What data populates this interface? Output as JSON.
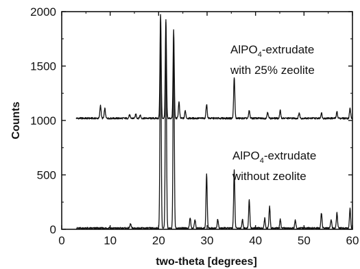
{
  "chart_data": {
    "type": "line",
    "xlabel": "two-theta [degrees]",
    "ylabel": "Counts",
    "xlim": [
      0,
      60
    ],
    "ylim": [
      0,
      2000
    ],
    "xticks": [
      "0",
      "10",
      "20",
      "30",
      "40",
      "50",
      "60"
    ],
    "yticks": [
      "0",
      "500",
      "1000",
      "1500",
      "2000"
    ],
    "grid": false,
    "annotations": [
      {
        "text_main": "AlPO",
        "subscript": "4",
        "text_rest": "-extrudate",
        "line2": "with 25% zeolite"
      },
      {
        "text_main": "AlPO",
        "subscript": "4",
        "text_rest": "-extrudate",
        "line2": "without zeolite"
      }
    ],
    "series": [
      {
        "baseline": 1020,
        "x_start": 3,
        "x_end": 60,
        "peaks": [
          {
            "x": 8.0,
            "y": 1140
          },
          {
            "x": 8.9,
            "y": 1110
          },
          {
            "x": 14.0,
            "y": 1050
          },
          {
            "x": 15.3,
            "y": 1060
          },
          {
            "x": 16.2,
            "y": 1050
          },
          {
            "x": 20.4,
            "y": 1980
          },
          {
            "x": 21.5,
            "y": 1920
          },
          {
            "x": 23.1,
            "y": 1830
          },
          {
            "x": 24.2,
            "y": 1170
          },
          {
            "x": 25.5,
            "y": 1090
          },
          {
            "x": 29.9,
            "y": 1150
          },
          {
            "x": 35.6,
            "y": 1400
          },
          {
            "x": 38.7,
            "y": 1090
          },
          {
            "x": 42.5,
            "y": 1080
          },
          {
            "x": 45.1,
            "y": 1090
          },
          {
            "x": 49.0,
            "y": 1070
          },
          {
            "x": 53.6,
            "y": 1070
          },
          {
            "x": 56.8,
            "y": 1080
          },
          {
            "x": 59.5,
            "y": 1110
          }
        ]
      },
      {
        "baseline": 10,
        "x_start": 3,
        "x_end": 60,
        "peaks": [
          {
            "x": 9.9,
            "y": 20
          },
          {
            "x": 14.2,
            "y": 50
          },
          {
            "x": 20.4,
            "y": 1960
          },
          {
            "x": 21.5,
            "y": 1900
          },
          {
            "x": 23.1,
            "y": 1820
          },
          {
            "x": 26.5,
            "y": 110
          },
          {
            "x": 27.5,
            "y": 90
          },
          {
            "x": 29.9,
            "y": 510
          },
          {
            "x": 32.2,
            "y": 90
          },
          {
            "x": 35.6,
            "y": 540
          },
          {
            "x": 37.3,
            "y": 90
          },
          {
            "x": 38.7,
            "y": 270
          },
          {
            "x": 41.9,
            "y": 100
          },
          {
            "x": 42.9,
            "y": 210
          },
          {
            "x": 45.1,
            "y": 90
          },
          {
            "x": 48.2,
            "y": 80
          },
          {
            "x": 53.6,
            "y": 150
          },
          {
            "x": 55.6,
            "y": 90
          },
          {
            "x": 56.8,
            "y": 150
          },
          {
            "x": 59.5,
            "y": 190
          }
        ]
      }
    ]
  }
}
